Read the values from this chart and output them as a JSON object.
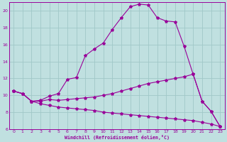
{
  "xlabel": "Windchill (Refroidissement éolien,°C)",
  "bg_color": "#c0e0e0",
  "grid_color": "#a0c8c8",
  "line_color": "#990099",
  "xlim": [
    -0.5,
    23.5
  ],
  "ylim": [
    6,
    21
  ],
  "yticks": [
    6,
    8,
    10,
    12,
    14,
    16,
    18,
    20
  ],
  "xticks": [
    0,
    1,
    2,
    3,
    4,
    5,
    6,
    7,
    8,
    9,
    10,
    11,
    12,
    13,
    14,
    15,
    16,
    17,
    18,
    19,
    20,
    21,
    22,
    23
  ],
  "line1_x": [
    0,
    1,
    2,
    3,
    4,
    5,
    6,
    7,
    8,
    9,
    10,
    11,
    12,
    13,
    14,
    15,
    16,
    17,
    18,
    19,
    20,
    21,
    22,
    23
  ],
  "line1_y": [
    10.5,
    10.2,
    9.3,
    9.4,
    9.9,
    10.2,
    11.9,
    12.1,
    14.7,
    15.5,
    16.2,
    17.8,
    19.2,
    20.5,
    20.8,
    20.7,
    19.2,
    18.8,
    18.7,
    15.8,
    12.5,
    9.3,
    8.1,
    6.3
  ],
  "line2_x": [
    0,
    1,
    2,
    3,
    4,
    5,
    6,
    7,
    8,
    9,
    10,
    11,
    12,
    13,
    14,
    15,
    16,
    17,
    18,
    19,
    20,
    21,
    22,
    23
  ],
  "line2_y": [
    10.5,
    10.2,
    9.3,
    9.3,
    9.5,
    9.4,
    9.5,
    9.6,
    9.7,
    9.8,
    10.0,
    10.2,
    10.5,
    10.8,
    11.1,
    11.4,
    11.6,
    11.8,
    12.0,
    12.2,
    12.5,
    9.3,
    8.1,
    6.3
  ],
  "line3_x": [
    0,
    1,
    2,
    3,
    4,
    5,
    6,
    7,
    8,
    9,
    10,
    11,
    12,
    13,
    14,
    15,
    16,
    17,
    18,
    19,
    20,
    21,
    22,
    23
  ],
  "line3_y": [
    10.5,
    10.2,
    9.3,
    9.0,
    8.8,
    8.6,
    8.5,
    8.4,
    8.3,
    8.2,
    8.0,
    7.9,
    7.8,
    7.7,
    7.6,
    7.5,
    7.4,
    7.3,
    7.2,
    7.1,
    7.0,
    6.8,
    6.6,
    6.3
  ]
}
